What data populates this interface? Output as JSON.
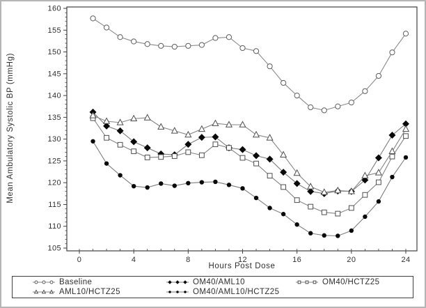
{
  "page": {
    "background": "#ffffff",
    "border_color": "#b5b5b5",
    "axis_color": "#3f3f3f",
    "text_color": "#303030"
  },
  "chart_data": {
    "type": "line",
    "title": "",
    "xlabel": "Hours Post Dose",
    "ylabel": "Mean Ambulatory Systolic BP (mmHg)",
    "xlim": [
      0,
      24
    ],
    "ylim": [
      105,
      160
    ],
    "xticks": [
      0,
      4,
      8,
      12,
      16,
      20,
      24
    ],
    "x_minor_step": 1,
    "yticks": [
      105,
      110,
      115,
      120,
      125,
      130,
      135,
      140,
      145,
      150,
      155,
      160
    ],
    "y_minor_step": 1,
    "grid": false,
    "frame": true,
    "legend_position": "bottom",
    "x": [
      1,
      2,
      3,
      4,
      5,
      6,
      7,
      8,
      9,
      10,
      11,
      12,
      13,
      14,
      15,
      16,
      17,
      18,
      19,
      20,
      21,
      22,
      23,
      24
    ],
    "series": [
      {
        "name": "Baseline",
        "marker": "circle-open",
        "line_color": "#8a8a8a",
        "marker_stroke": "#5c5c5c",
        "marker_fill": "#ffffff",
        "values": [
          157.7,
          155.6,
          153.4,
          152.4,
          151.8,
          151.4,
          151.2,
          151.4,
          151.6,
          153.2,
          153.4,
          150.9,
          150.2,
          146.7,
          142.9,
          140.0,
          137.3,
          136.6,
          137.5,
          138.4,
          141.0,
          144.5,
          149.9,
          154.2
        ]
      },
      {
        "name": "OM40/AML10",
        "marker": "diamond-filled",
        "line_color": "#7d7d7d",
        "marker_stroke": "#0a0a0a",
        "marker_fill": "#0a0a0a",
        "values": [
          136.2,
          133.0,
          131.9,
          129.4,
          128.0,
          126.6,
          126.4,
          128.8,
          130.4,
          130.5,
          128.0,
          127.6,
          126.2,
          125.4,
          122.4,
          119.8,
          118.0,
          117.5,
          118.1,
          118.0,
          120.6,
          125.7,
          130.9,
          133.5
        ]
      },
      {
        "name": "OM40/HCTZ25",
        "marker": "square-open",
        "line_color": "#848484",
        "marker_stroke": "#4d4d4d",
        "marker_fill": "#ffffff",
        "values": [
          134.8,
          130.3,
          128.7,
          127.2,
          125.8,
          125.9,
          126.1,
          127.0,
          126.3,
          128.8,
          128.0,
          125.7,
          124.4,
          121.6,
          119.0,
          116.0,
          114.5,
          113.2,
          112.9,
          114.2,
          117.2,
          120.1,
          126.0,
          130.7
        ]
      },
      {
        "name": "AML10/HCTZ25",
        "marker": "triangle-open",
        "line_color": "#848484",
        "marker_stroke": "#4d4d4d",
        "marker_fill": "#ffffff",
        "values": [
          135.4,
          134.1,
          133.8,
          134.7,
          134.9,
          132.8,
          131.9,
          131.0,
          132.3,
          133.6,
          133.3,
          133.3,
          131.0,
          130.3,
          126.4,
          122.2,
          119.1,
          117.8,
          118.2,
          118.0,
          121.6,
          122.3,
          127.2,
          132.3
        ]
      },
      {
        "name": "OM40/AML10/HCTZ25",
        "marker": "circle-filled",
        "line_color": "#7d7d7d",
        "marker_stroke": "#0a0a0a",
        "marker_fill": "#0a0a0a",
        "values": [
          129.5,
          124.4,
          121.7,
          119.2,
          118.9,
          119.8,
          119.3,
          119.9,
          120.1,
          120.2,
          119.5,
          118.7,
          116.5,
          114.2,
          112.8,
          110.4,
          108.4,
          107.9,
          107.8,
          109.0,
          112.2,
          115.7,
          121.3,
          125.8
        ]
      }
    ]
  }
}
